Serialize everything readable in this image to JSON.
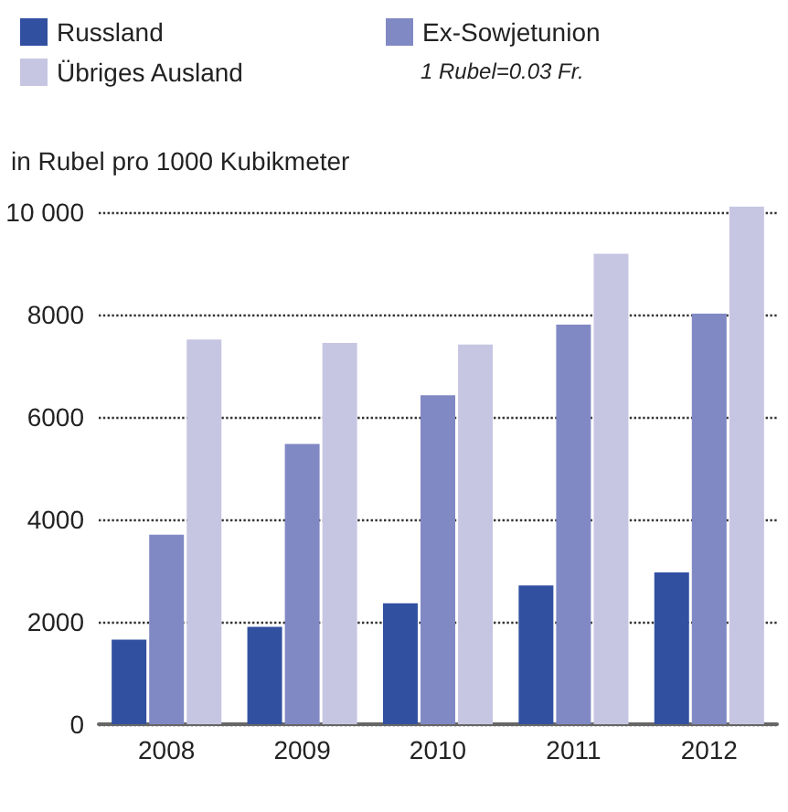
{
  "chart_data": {
    "type": "bar",
    "ylabel": "in Rubel pro 1000 Kubikmeter",
    "annotations": [
      "1 Rubel=0.03 Fr."
    ],
    "categories": [
      "2008",
      "2009",
      "2010",
      "2011",
      "2012"
    ],
    "series": [
      {
        "name": "Russland",
        "color": "#3150a0",
        "values": [
          1650,
          1900,
          2360,
          2710,
          2960
        ]
      },
      {
        "name": "Ex-Sowjetunion",
        "color": "#8189c4",
        "values": [
          3700,
          5470,
          6420,
          7800,
          8010
        ]
      },
      {
        "name": "Übriges Ausland",
        "color": "#c6c6e3",
        "values": [
          7510,
          7440,
          7410,
          9180,
          10100
        ]
      }
    ],
    "ylim": [
      0,
      10100
    ],
    "yticks": [
      0,
      2000,
      4000,
      6000,
      8000,
      {
        "value": 10000,
        "label": "10 000"
      }
    ],
    "grid": "y",
    "legend": "top left"
  }
}
